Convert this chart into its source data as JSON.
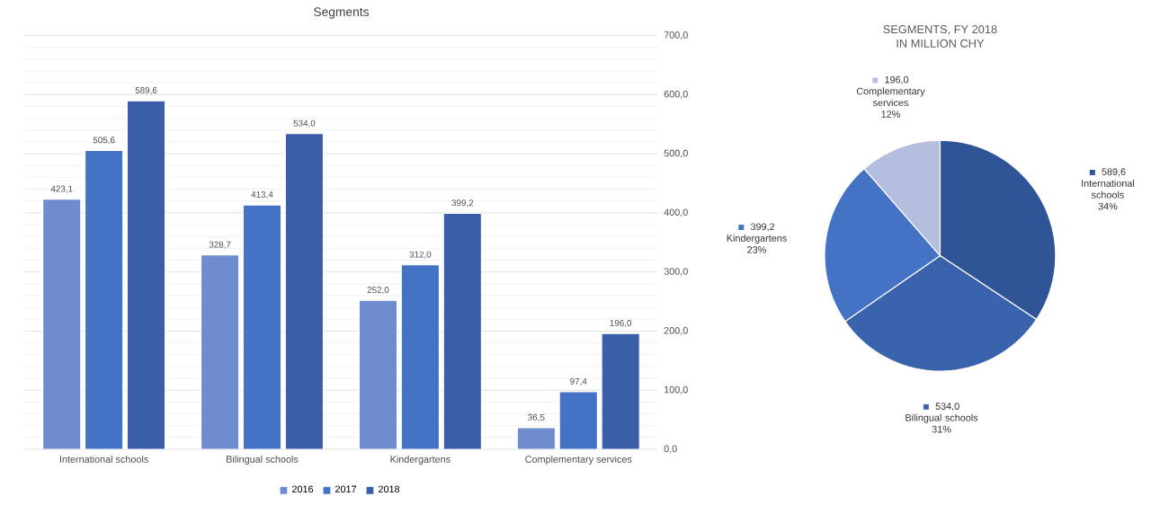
{
  "chart_data": [
    {
      "type": "bar",
      "title": "Segments",
      "categories": [
        "International schools",
        "Bilingual schools",
        "Kindergartens",
        "Complementary services"
      ],
      "series": [
        {
          "name": "2016",
          "color": "#6f8ccf",
          "values": [
            423.1,
            328.7,
            252.0,
            36.5
          ],
          "value_labels": [
            "423,1",
            "328,7",
            "252,0",
            "36,5"
          ]
        },
        {
          "name": "2017",
          "color": "#4472c4",
          "values": [
            505.6,
            413.4,
            312.0,
            97.4
          ],
          "value_labels": [
            "505,6",
            "413,4",
            "312,0",
            "97,4"
          ]
        },
        {
          "name": "2018",
          "color": "#3a5ea8",
          "values": [
            589.6,
            534.0,
            399.2,
            196.0
          ],
          "value_labels": [
            "589,6",
            "534,0",
            "399,2",
            "196,0"
          ]
        }
      ],
      "ylim": [
        0,
        700
      ],
      "yticks": [
        {
          "value": 0,
          "label": "0,0"
        },
        {
          "value": 100,
          "label": "100,0"
        },
        {
          "value": 200,
          "label": "200,0"
        },
        {
          "value": 300,
          "label": "300,0"
        },
        {
          "value": 400,
          "label": "400,0"
        },
        {
          "value": 500,
          "label": "500,0"
        },
        {
          "value": 600,
          "label": "600,0"
        },
        {
          "value": 700,
          "label": "700,0"
        }
      ],
      "grid": "y",
      "legend": "bottom"
    },
    {
      "type": "pie",
      "title": "SEGMENTS, FY 2018",
      "subtitle": "IN MILLION CHY",
      "categories": [
        "International schools",
        "Bilingual schools",
        "Kindergartens",
        "Complementary services"
      ],
      "values": [
        589.6,
        534.0,
        399.2,
        196.0
      ],
      "value_labels": [
        "589,6",
        "534,0",
        "399,2",
        "196,0"
      ],
      "colors": [
        "#2f5597",
        "#3a63ad",
        "#4472c4",
        "#b4bfe0"
      ],
      "annotations": [
        "34%",
        "31%",
        "23%",
        "12%"
      ],
      "legend": "right"
    }
  ]
}
